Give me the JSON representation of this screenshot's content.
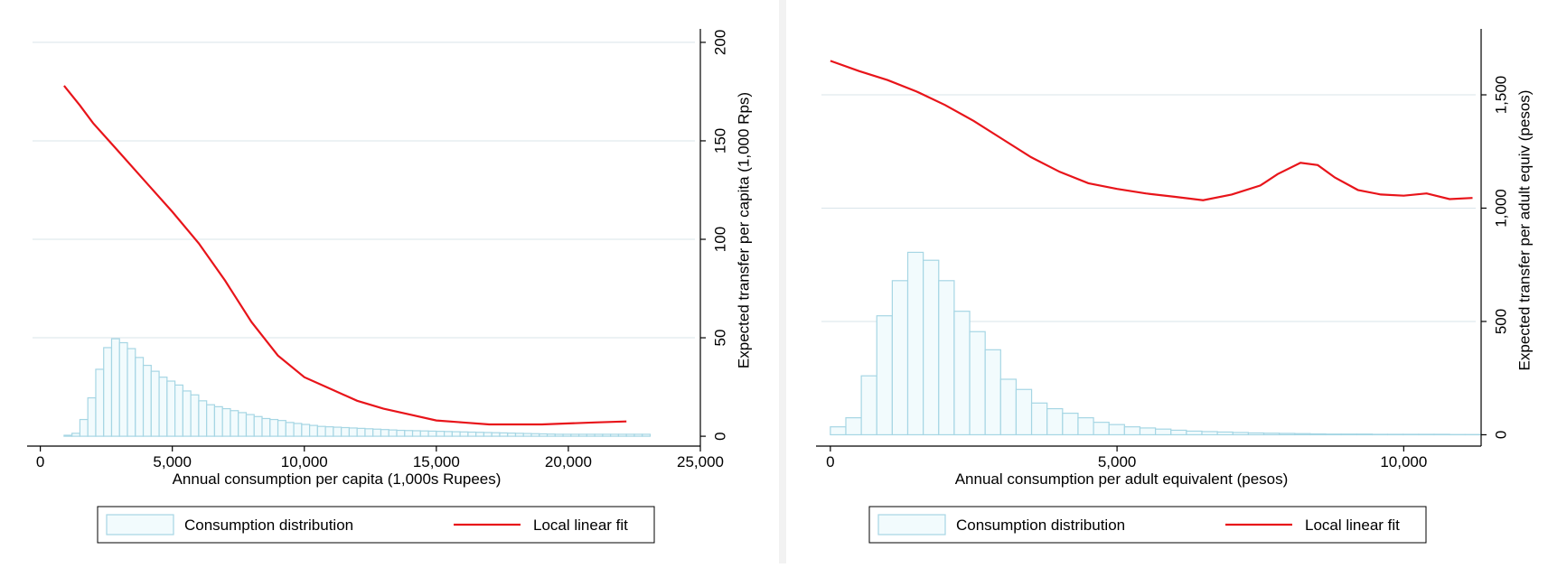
{
  "chart_data": [
    {
      "type": "bar",
      "xlabel": "Annual consumption per capita (1,000s Rupees)",
      "ylabel": "Expected transfer per capita (1,000 Rps)",
      "x_ticks": [
        0,
        5000,
        10000,
        15000,
        20000,
        25000
      ],
      "x_tick_labels": [
        "0",
        "5,000",
        "10,000",
        "15,000",
        "20,000",
        "25,000"
      ],
      "xlim": [
        -500,
        25000
      ],
      "y_ticks": [
        0,
        50,
        100,
        150,
        200
      ],
      "y_tick_labels": [
        "0",
        "50",
        "100",
        "150",
        "200"
      ],
      "ylim": [
        -5,
        205
      ],
      "grid": true,
      "y_axis_side": "right",
      "legend_position": "bottom",
      "series": [
        {
          "name": "Consumption distribution",
          "kind": "histogram",
          "bin_width": 300,
          "bin_start": 900,
          "values": [
            0.5,
            1.5,
            8.5,
            19.5,
            34,
            45,
            49.5,
            47.5,
            44.5,
            40,
            36,
            33,
            30,
            28,
            26,
            23,
            21,
            18,
            16,
            15,
            14,
            13,
            12,
            11,
            10,
            9,
            8.5,
            8,
            7,
            6.5,
            6,
            5.5,
            5,
            4.8,
            4.6,
            4.4,
            4.2,
            4,
            3.8,
            3.6,
            3.4,
            3.2,
            3,
            2.9,
            2.8,
            2.7,
            2.6,
            2.5,
            2.4,
            2.3,
            2.2,
            2.1,
            2,
            1.9,
            1.8,
            1.7,
            1.6,
            1.5,
            1.4,
            1.3,
            1.2,
            1.1,
            1,
            1,
            1,
            1,
            1,
            1,
            1,
            1,
            1,
            1,
            1,
            1
          ]
        },
        {
          "name": "Local linear fit",
          "kind": "line",
          "points": [
            [
              900,
              178
            ],
            [
              1500,
              168
            ],
            [
              2000,
              159
            ],
            [
              3000,
              144
            ],
            [
              4000,
              129
            ],
            [
              5000,
              114
            ],
            [
              6000,
              98
            ],
            [
              7000,
              79
            ],
            [
              8000,
              58
            ],
            [
              9000,
              41
            ],
            [
              10000,
              30
            ],
            [
              11000,
              24
            ],
            [
              12000,
              18
            ],
            [
              13000,
              14
            ],
            [
              14000,
              11
            ],
            [
              15000,
              8
            ],
            [
              16000,
              7
            ],
            [
              17000,
              6
            ],
            [
              18000,
              6
            ],
            [
              19000,
              6
            ],
            [
              20000,
              6.5
            ],
            [
              21000,
              7
            ],
            [
              22200,
              7.5
            ]
          ]
        }
      ]
    },
    {
      "type": "bar",
      "xlabel": "Annual consumption per adult equivalent (pesos)",
      "ylabel": "Expected transfer per adult equiv (pesos)",
      "x_ticks": [
        0,
        5000,
        10000
      ],
      "x_tick_labels": [
        "0",
        "5,000",
        "10,000"
      ],
      "xlim": [
        -250,
        11350
      ],
      "y_ticks": [
        0,
        500,
        1000,
        1500
      ],
      "y_tick_labels": [
        "0",
        "500",
        "1,000",
        "1,500"
      ],
      "ylim": [
        -50,
        1775
      ],
      "grid": true,
      "y_axis_side": "right",
      "legend_position": "bottom",
      "series": [
        {
          "name": "Consumption distribution",
          "kind": "histogram",
          "bin_width": 270,
          "bin_start": 0,
          "values": [
            35,
            75,
            260,
            525,
            680,
            805,
            770,
            680,
            545,
            455,
            375,
            245,
            200,
            140,
            115,
            95,
            75,
            55,
            45,
            35,
            30,
            25,
            20,
            16,
            14,
            12,
            10,
            8,
            7,
            6,
            5,
            4,
            3,
            3,
            3,
            2,
            2,
            2,
            2,
            2,
            1,
            1
          ]
        },
        {
          "name": "Local linear fit",
          "kind": "line",
          "points": [
            [
              0,
              1650
            ],
            [
              500,
              1605
            ],
            [
              1000,
              1565
            ],
            [
              1500,
              1515
            ],
            [
              2000,
              1455
            ],
            [
              2500,
              1385
            ],
            [
              3000,
              1305
            ],
            [
              3500,
              1225
            ],
            [
              4000,
              1160
            ],
            [
              4500,
              1110
            ],
            [
              5000,
              1085
            ],
            [
              5500,
              1065
            ],
            [
              6000,
              1050
            ],
            [
              6500,
              1035
            ],
            [
              7000,
              1060
            ],
            [
              7500,
              1100
            ],
            [
              7800,
              1150
            ],
            [
              8200,
              1200
            ],
            [
              8500,
              1190
            ],
            [
              8800,
              1135
            ],
            [
              9200,
              1080
            ],
            [
              9600,
              1060
            ],
            [
              10000,
              1055
            ],
            [
              10400,
              1065
            ],
            [
              10800,
              1040
            ],
            [
              11200,
              1045
            ]
          ]
        }
      ]
    }
  ]
}
